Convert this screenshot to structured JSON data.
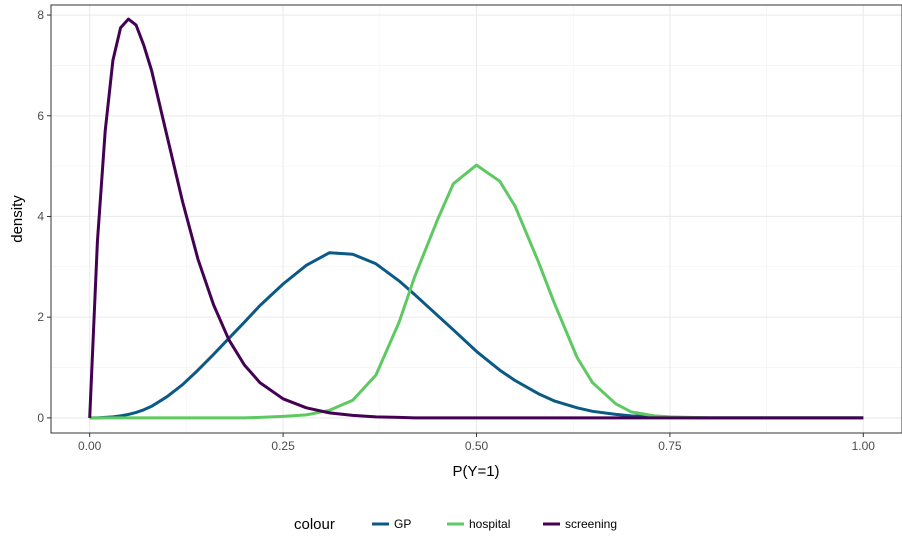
{
  "chart_data": {
    "type": "line",
    "title": "",
    "xlabel": "P(Y=1)",
    "ylabel": "density",
    "xlim": [
      -0.05,
      1.05
    ],
    "ylim": [
      -0.3,
      8.2
    ],
    "x_ticks": [
      0.0,
      0.25,
      0.5,
      0.75,
      1.0
    ],
    "x_tick_labels": [
      "0.00",
      "0.25",
      "0.50",
      "0.75",
      "1.00"
    ],
    "y_ticks": [
      0,
      2,
      4,
      6,
      8
    ],
    "y_tick_labels": [
      "0",
      "2",
      "4",
      "6",
      "8"
    ],
    "grid": true,
    "legend": {
      "title": "colour",
      "position": "bottom"
    },
    "x": [
      0.0,
      0.01,
      0.02,
      0.03,
      0.04,
      0.05,
      0.06,
      0.07,
      0.08,
      0.1,
      0.12,
      0.14,
      0.16,
      0.18,
      0.2,
      0.22,
      0.25,
      0.28,
      0.31,
      0.34,
      0.37,
      0.4,
      0.42,
      0.45,
      0.47,
      0.5,
      0.53,
      0.55,
      0.58,
      0.6,
      0.63,
      0.65,
      0.68,
      0.7,
      0.73,
      0.75,
      0.8,
      0.85,
      0.9,
      0.95,
      1.0
    ],
    "series": [
      {
        "name": "GP",
        "color": "#0b5a86",
        "values": [
          0.0,
          0.0,
          0.01,
          0.02,
          0.04,
          0.07,
          0.11,
          0.16,
          0.23,
          0.42,
          0.66,
          0.95,
          1.26,
          1.58,
          1.9,
          2.23,
          2.66,
          3.03,
          3.28,
          3.25,
          3.06,
          2.72,
          2.45,
          2.03,
          1.75,
          1.32,
          0.95,
          0.74,
          0.48,
          0.34,
          0.2,
          0.13,
          0.07,
          0.04,
          0.02,
          0.01,
          0.0,
          0.0,
          0.0,
          0.0,
          0.0
        ]
      },
      {
        "name": "hospital",
        "color": "#5ec962",
        "values": [
          0.0,
          0.0,
          0.0,
          0.0,
          0.0,
          0.0,
          0.0,
          0.0,
          0.0,
          0.0,
          0.0,
          0.0,
          0.0,
          0.0,
          0.0,
          0.01,
          0.03,
          0.06,
          0.15,
          0.35,
          0.85,
          1.9,
          2.8,
          3.95,
          4.65,
          5.02,
          4.7,
          4.2,
          3.1,
          2.3,
          1.2,
          0.7,
          0.28,
          0.12,
          0.04,
          0.02,
          0.0,
          0.0,
          0.0,
          0.0,
          0.0
        ]
      },
      {
        "name": "screening",
        "color": "#440154",
        "values": [
          0.0,
          3.5,
          5.7,
          7.1,
          7.75,
          7.92,
          7.8,
          7.4,
          6.9,
          5.6,
          4.3,
          3.15,
          2.25,
          1.55,
          1.05,
          0.7,
          0.38,
          0.2,
          0.1,
          0.05,
          0.02,
          0.01,
          0.0,
          0.0,
          0.0,
          0.0,
          0.0,
          0.0,
          0.0,
          0.0,
          0.0,
          0.0,
          0.0,
          0.0,
          0.0,
          0.0,
          0.0,
          0.0,
          0.0,
          0.0,
          0.0
        ]
      }
    ]
  }
}
